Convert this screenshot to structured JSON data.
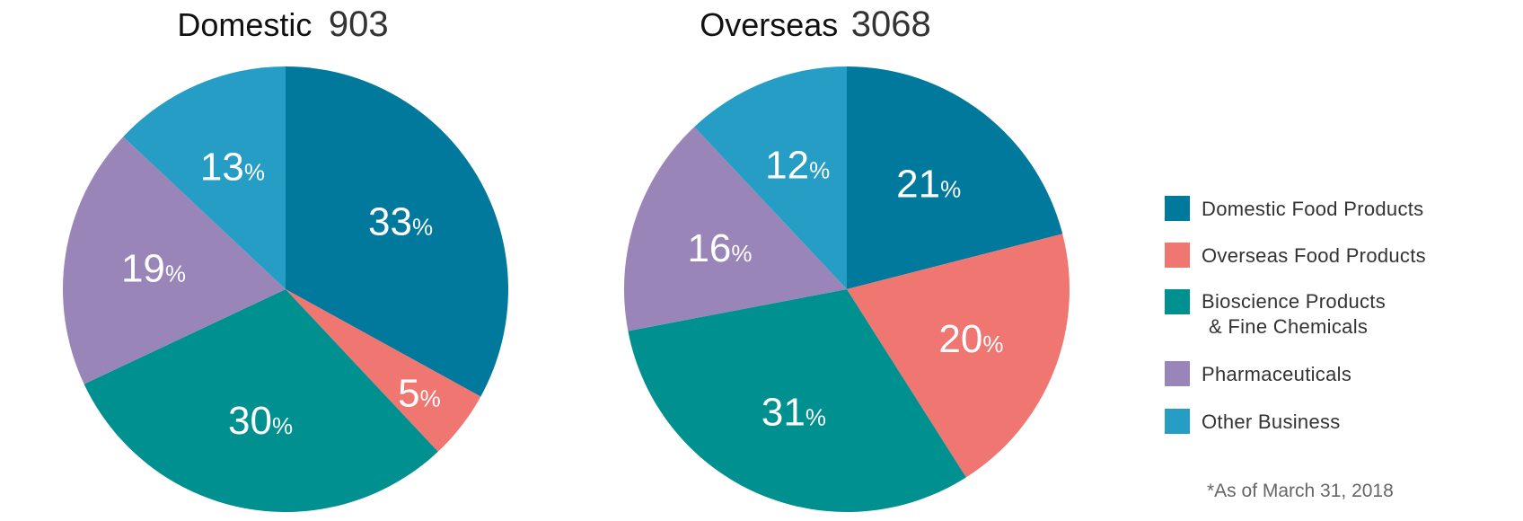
{
  "chart_data": [
    {
      "type": "pie",
      "title": "Domestic",
      "total": "903",
      "categories": [
        "Domestic Food Products",
        "Overseas Food Products",
        "Bioscience Products & Fine Chemicals",
        "Pharmaceuticals",
        "Other Business"
      ],
      "values": [
        33,
        5,
        30,
        19,
        13
      ],
      "value_labels": [
        "33",
        "5",
        "30",
        "19",
        "13"
      ],
      "unit": "%"
    },
    {
      "type": "pie",
      "title": "Overseas",
      "total": "3068",
      "categories": [
        "Domestic Food Products",
        "Overseas Food Products",
        "Bioscience Products & Fine Chemicals",
        "Pharmaceuticals",
        "Other Business"
      ],
      "values": [
        21,
        20,
        31,
        16,
        12
      ],
      "value_labels": [
        "21",
        "20",
        "31",
        "16",
        "12"
      ],
      "unit": "%"
    }
  ],
  "legend": {
    "placement": "right",
    "items": [
      {
        "lines": [
          "Domestic Food Products"
        ],
        "color": "#00799c"
      },
      {
        "lines": [
          "Overseas Food Products"
        ],
        "color": "#f07671"
      },
      {
        "lines": [
          "Bioscience Products",
          "& Fine Chemicals"
        ],
        "color": "#009090"
      },
      {
        "lines": [
          "Pharmaceuticals"
        ],
        "color": "#9a85b9"
      },
      {
        "lines": [
          "Other Business"
        ],
        "color": "#259dc5"
      }
    ]
  },
  "footnote": "*As of March 31, 2018"
}
